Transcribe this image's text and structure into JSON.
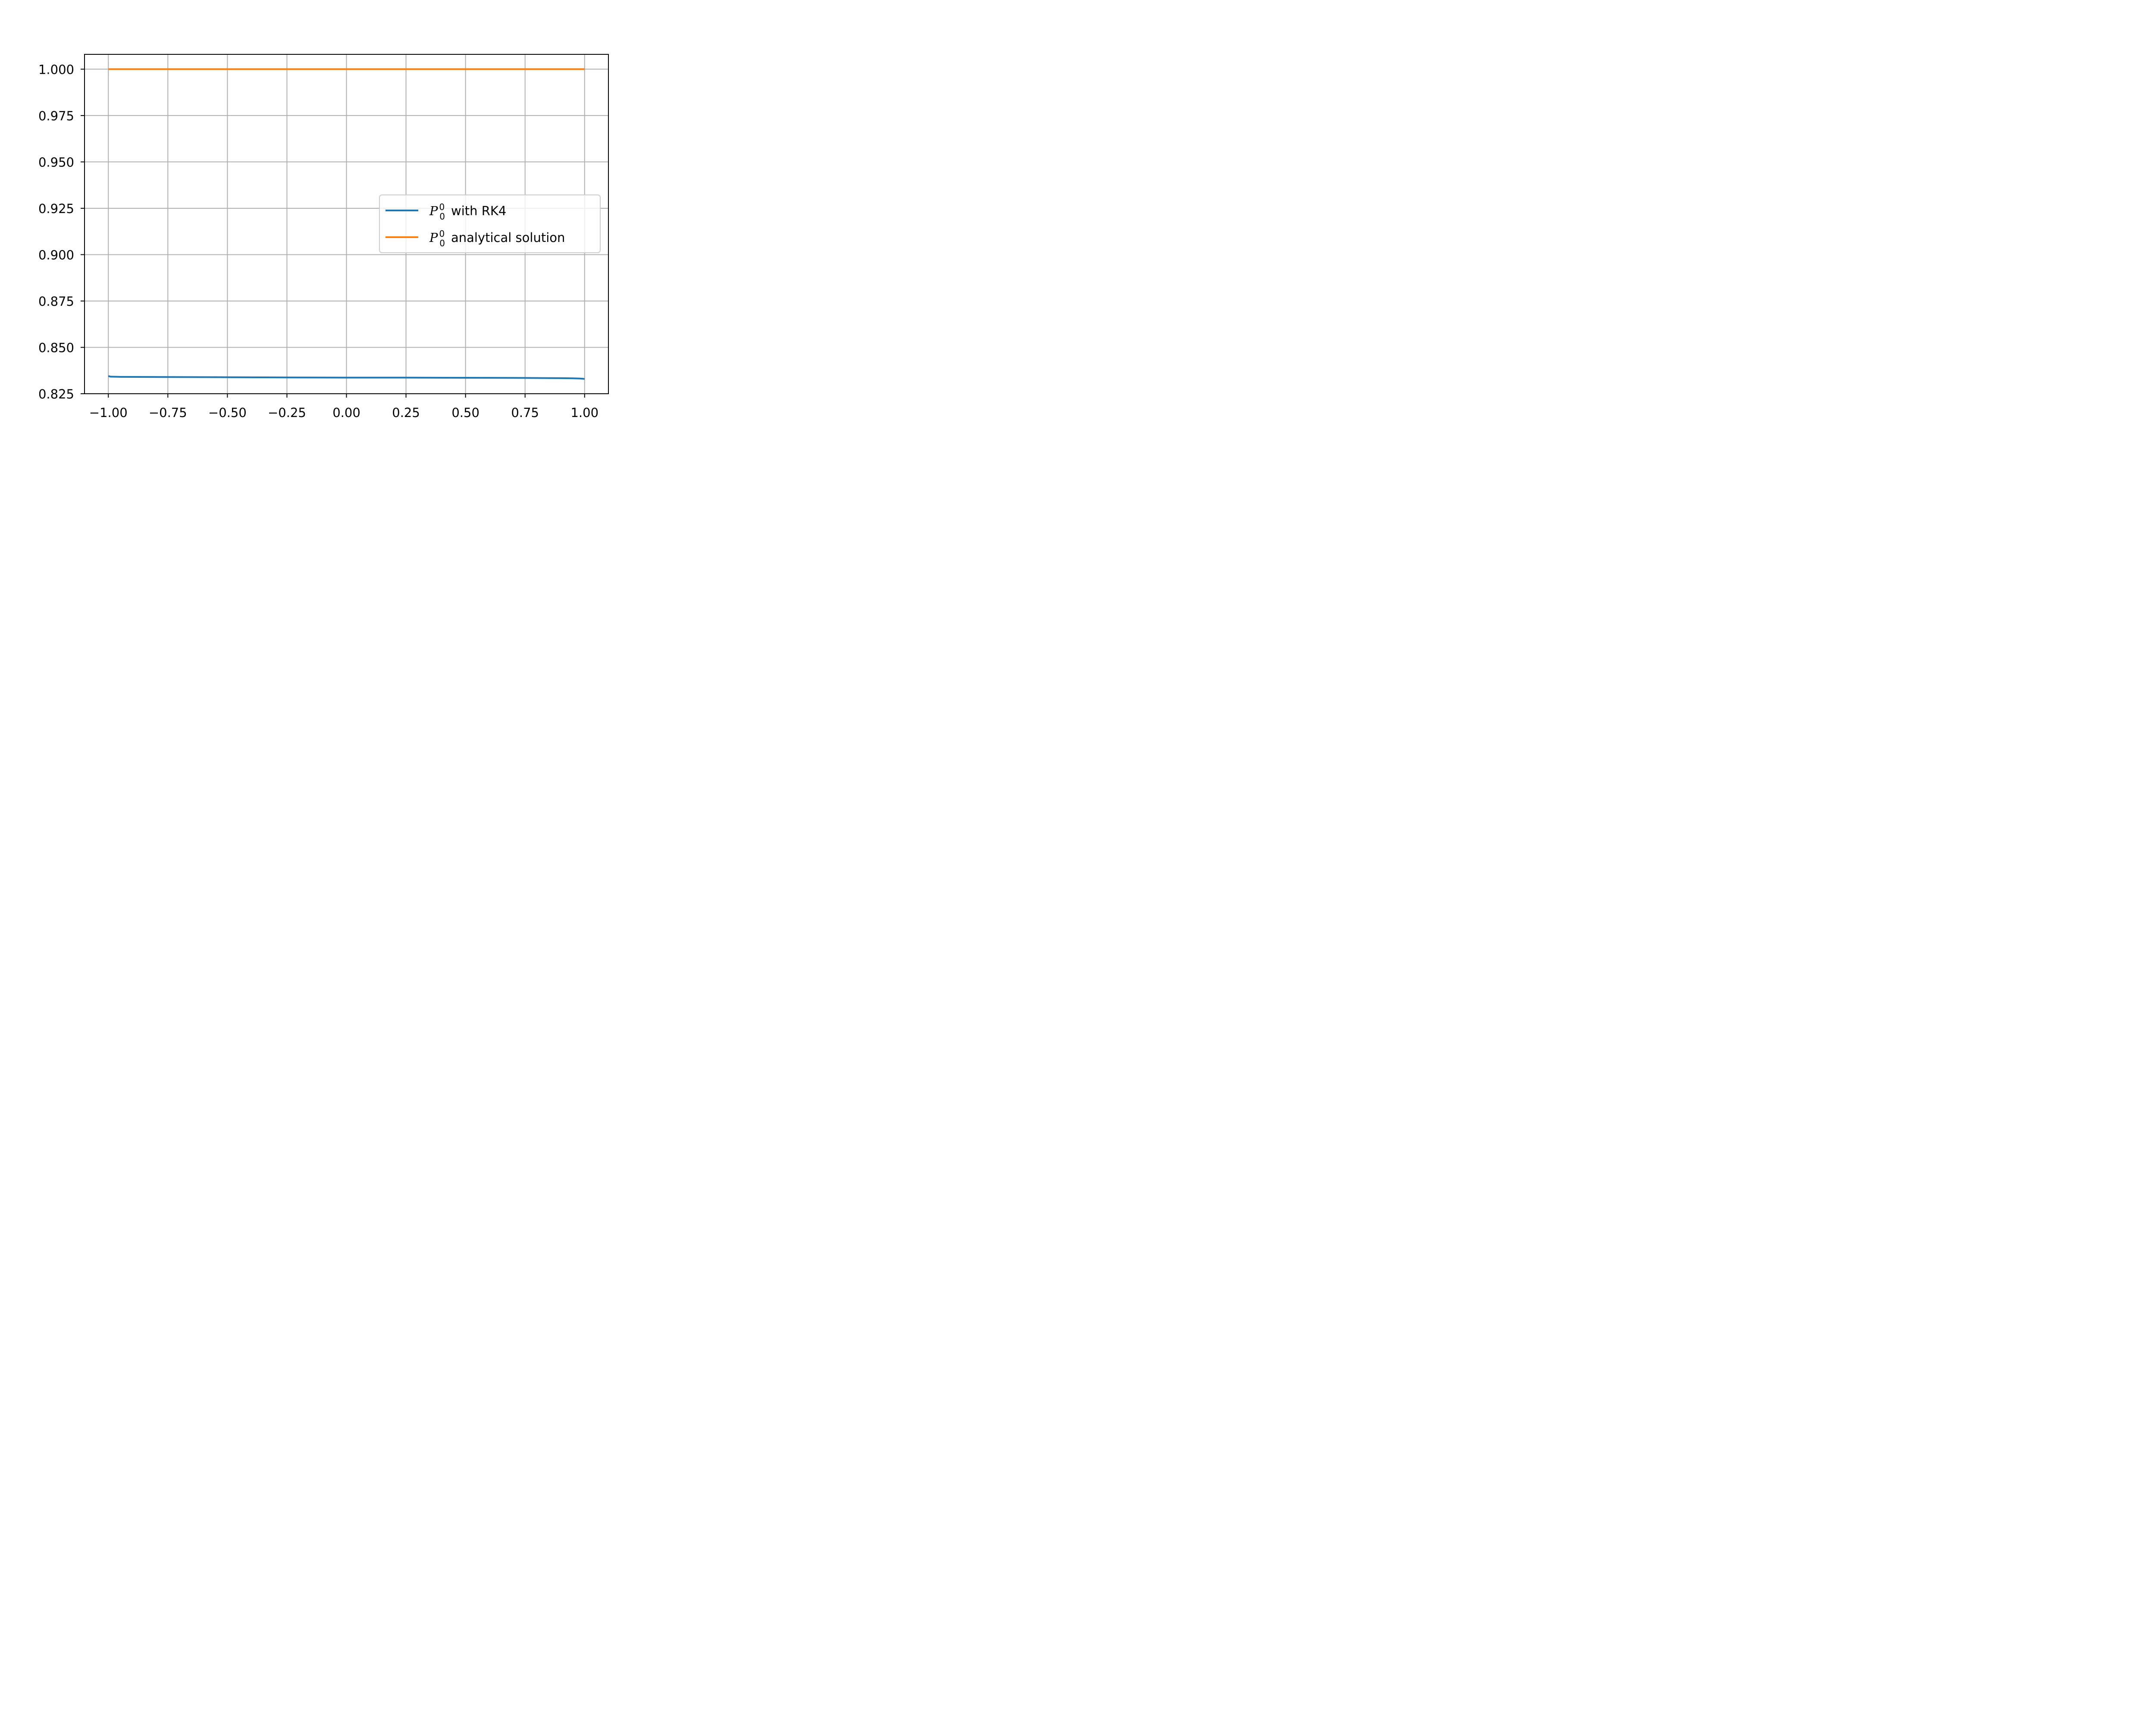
{
  "chart_data": {
    "type": "line",
    "title": "",
    "xlabel": "",
    "ylabel": "",
    "xlim": [
      -1.1,
      1.1
    ],
    "ylim": [
      0.825,
      1.008
    ],
    "grid": true,
    "legend_placement": "center-right",
    "x_ticks": [
      -1.0,
      -0.75,
      -0.5,
      -0.25,
      0.0,
      0.25,
      0.5,
      0.75,
      1.0
    ],
    "x_tick_labels": [
      "−1.00",
      "−0.75",
      "−0.50",
      "−0.25",
      "0.00",
      "0.25",
      "0.50",
      "0.75",
      "1.00"
    ],
    "y_ticks": [
      0.825,
      0.85,
      0.875,
      0.9,
      0.925,
      0.95,
      0.975,
      1.0
    ],
    "y_tick_labels": [
      "0.825",
      "0.850",
      "0.875",
      "0.900",
      "0.925",
      "0.950",
      "0.975",
      "1.000"
    ],
    "series": [
      {
        "name": "P_0^0 with RK4",
        "label_symbol": "P",
        "label_sup": "0",
        "label_sub": "0",
        "label_text": "with RK4",
        "color": "#1f77b4",
        "x": [
          -1.0,
          -0.99,
          -0.95,
          -0.75,
          -0.5,
          -0.25,
          0.0,
          0.25,
          0.5,
          0.75,
          0.9,
          0.95,
          0.98,
          1.0
        ],
        "y": [
          0.8345,
          0.8342,
          0.8341,
          0.834,
          0.8339,
          0.8338,
          0.8337,
          0.8337,
          0.8336,
          0.8335,
          0.8334,
          0.8333,
          0.8332,
          0.833
        ]
      },
      {
        "name": "P_0^0 analytical solution",
        "label_symbol": "P",
        "label_sup": "0",
        "label_sub": "0",
        "label_text": "analytical solution",
        "color": "#ff7f0e",
        "x": [
          -1.0,
          1.0
        ],
        "y": [
          1.0,
          1.0
        ]
      }
    ]
  }
}
